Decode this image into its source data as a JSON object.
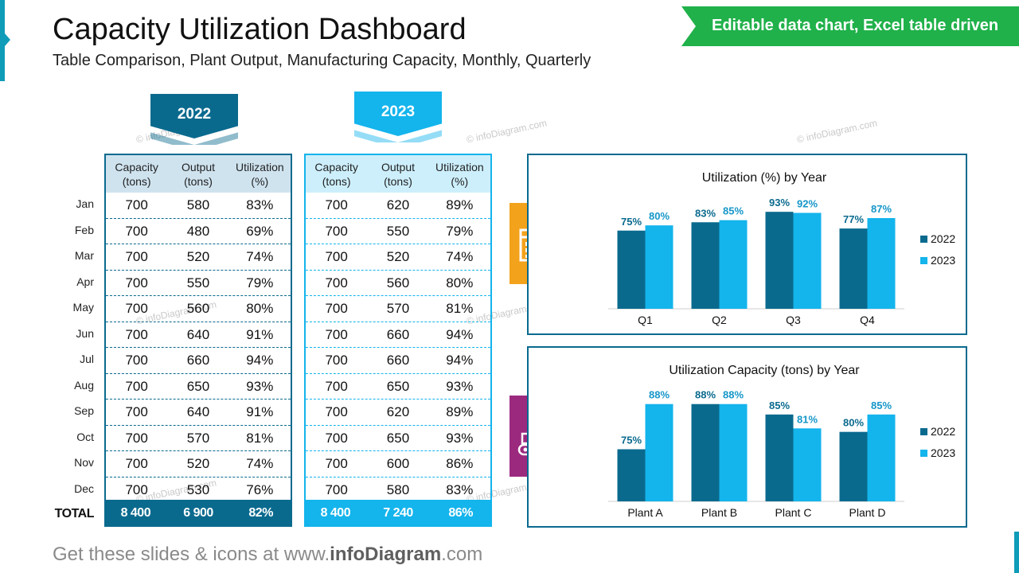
{
  "title": "Capacity Utilization Dashboard",
  "subtitle": "Table Comparison, Plant Output, Manufacturing Capacity, Monthly, Quarterly",
  "banner": "Editable data chart, Excel table driven",
  "watermark": "© infoDiagram.com",
  "footer": {
    "prefix": "Get these slides & icons at www.",
    "brand": "infoDiagram",
    "suffix": ".com"
  },
  "colors": {
    "y2022": "#0a6a8e",
    "y2023": "#14b4ec",
    "calendar_tile": "#f3a21c",
    "factory_tile": "#9b2a7f",
    "banner": "#20b14a"
  },
  "icons": {
    "tile1": "calendar-icon",
    "tile2": "conveyor-belt-icon"
  },
  "months": [
    "Jan",
    "Feb",
    "Mar",
    "Apr",
    "May",
    "Jun",
    "Jul",
    "Aug",
    "Sep",
    "Oct",
    "Nov",
    "Dec"
  ],
  "total_label": "TOTAL",
  "tables": [
    {
      "year": "2022",
      "headers": [
        [
          "Capacity",
          "(tons)"
        ],
        [
          "Output",
          "(tons)"
        ],
        [
          "Utilization",
          "(%)"
        ]
      ],
      "rows": [
        [
          "700",
          "580",
          "83%"
        ],
        [
          "700",
          "480",
          "69%"
        ],
        [
          "700",
          "520",
          "74%"
        ],
        [
          "700",
          "550",
          "79%"
        ],
        [
          "700",
          "560",
          "80%"
        ],
        [
          "700",
          "640",
          "91%"
        ],
        [
          "700",
          "660",
          "94%"
        ],
        [
          "700",
          "650",
          "93%"
        ],
        [
          "700",
          "640",
          "91%"
        ],
        [
          "700",
          "570",
          "81%"
        ],
        [
          "700",
          "520",
          "74%"
        ],
        [
          "700",
          "530",
          "76%"
        ]
      ],
      "total": [
        "8 400",
        "6 900",
        "82%"
      ]
    },
    {
      "year": "2023",
      "headers": [
        [
          "Capacity",
          "(tons)"
        ],
        [
          "Output",
          "(tons)"
        ],
        [
          "Utilization",
          "(%)"
        ]
      ],
      "rows": [
        [
          "700",
          "620",
          "89%"
        ],
        [
          "700",
          "550",
          "79%"
        ],
        [
          "700",
          "520",
          "74%"
        ],
        [
          "700",
          "560",
          "80%"
        ],
        [
          "700",
          "570",
          "81%"
        ],
        [
          "700",
          "660",
          "94%"
        ],
        [
          "700",
          "660",
          "94%"
        ],
        [
          "700",
          "650",
          "93%"
        ],
        [
          "700",
          "620",
          "89%"
        ],
        [
          "700",
          "650",
          "93%"
        ],
        [
          "700",
          "600",
          "86%"
        ],
        [
          "700",
          "580",
          "83%"
        ]
      ],
      "total": [
        "8 400",
        "7 240",
        "86%"
      ]
    }
  ],
  "chart_data": [
    {
      "type": "bar",
      "title": "Utilization (%) by Year",
      "categories": [
        "Q1",
        "Q2",
        "Q3",
        "Q4"
      ],
      "series": [
        {
          "name": "2022",
          "values": [
            75,
            83,
            93,
            77
          ],
          "labels": [
            "75%",
            "83%",
            "93%",
            "77%"
          ]
        },
        {
          "name": "2023",
          "values": [
            80,
            85,
            92,
            87
          ],
          "labels": [
            "80%",
            "85%",
            "92%",
            "87%"
          ]
        }
      ],
      "ylim": [
        0,
        100
      ],
      "grid": false,
      "legend": "right"
    },
    {
      "type": "bar",
      "title": "Utilization Capacity (tons) by Year",
      "categories": [
        "Plant A",
        "Plant B",
        "Plant C",
        "Plant D"
      ],
      "series": [
        {
          "name": "2022",
          "values": [
            75,
            88,
            85,
            80
          ],
          "labels": [
            "75%",
            "88%",
            "85%",
            "80%"
          ]
        },
        {
          "name": "2023",
          "values": [
            88,
            88,
            81,
            85
          ],
          "labels": [
            "88%",
            "88%",
            "81%",
            "85%"
          ]
        }
      ],
      "ylim": [
        60,
        90
      ],
      "grid": false,
      "legend": "right"
    }
  ]
}
